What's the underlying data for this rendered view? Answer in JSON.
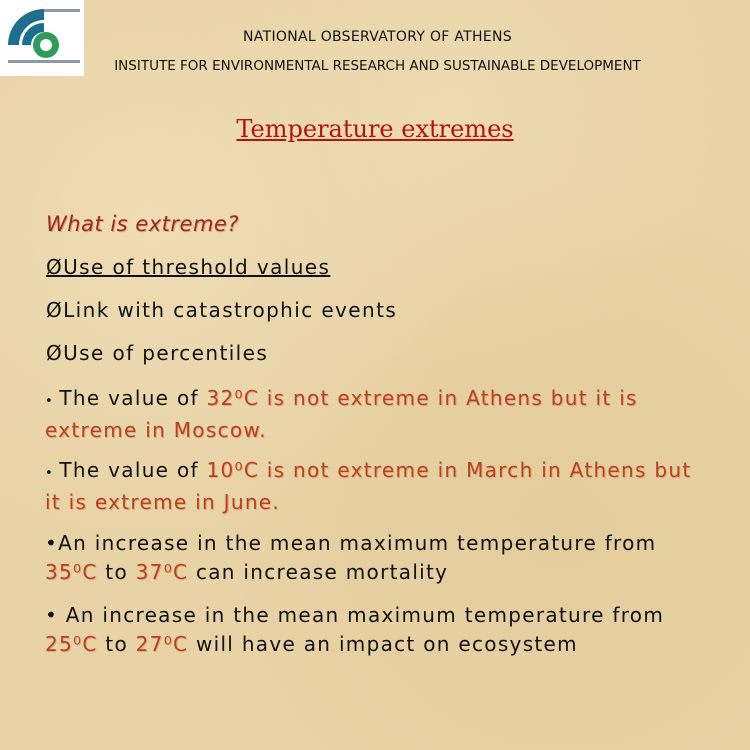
{
  "header": {
    "organization": "NATIONAL OBSERVATORY OF ATHENS",
    "institute": "INSITUTE FOR ENVIRONMENTAL RESEARCH AND SUSTAINABLE DEVELOPMENT",
    "title": "Temperature extremes"
  },
  "question": "What is extreme?",
  "items": [
    {
      "text": "ØUse of threshold values",
      "underline": true
    },
    {
      "text": "ØLink with catastrophic events",
      "underline": false
    },
    {
      "text": "ØUse of percentiles",
      "underline": false
    }
  ],
  "paragraphs": [
    {
      "segments": [
        {
          "text": "• ",
          "style": "small"
        },
        {
          "text": "The value of ",
          "style": "plain"
        },
        {
          "text": "32⁰C is not extreme in Athens but it is extreme in Moscow.",
          "style": "highlight"
        }
      ]
    },
    {
      "segments": [
        {
          "text": "• ",
          "style": "small"
        },
        {
          "text": "The value of  ",
          "style": "plain"
        },
        {
          "text": "10⁰C is not extreme in March in Athens but it is extreme in June.",
          "style": "highlight"
        }
      ]
    },
    {
      "segments": [
        {
          "text": "•An increase in the mean maximum temperature from ",
          "style": "plain"
        },
        {
          "text": "35⁰C",
          "style": "highlight"
        },
        {
          "text": " to ",
          "style": "plain"
        },
        {
          "text": "37⁰C",
          "style": "highlight"
        },
        {
          "text": " can increase  mortality",
          "style": "plain"
        }
      ]
    },
    {
      "segments": [
        {
          "text": "• An increase in the mean maximum temperature from ",
          "style": "plain"
        },
        {
          "text": "25⁰C",
          "style": "highlight"
        },
        {
          "text": " to ",
          "style": "plain"
        },
        {
          "text": "27⁰C",
          "style": "highlight"
        },
        {
          "text": " will have an impact on ecosystem",
          "style": "plain"
        }
      ]
    }
  ]
}
